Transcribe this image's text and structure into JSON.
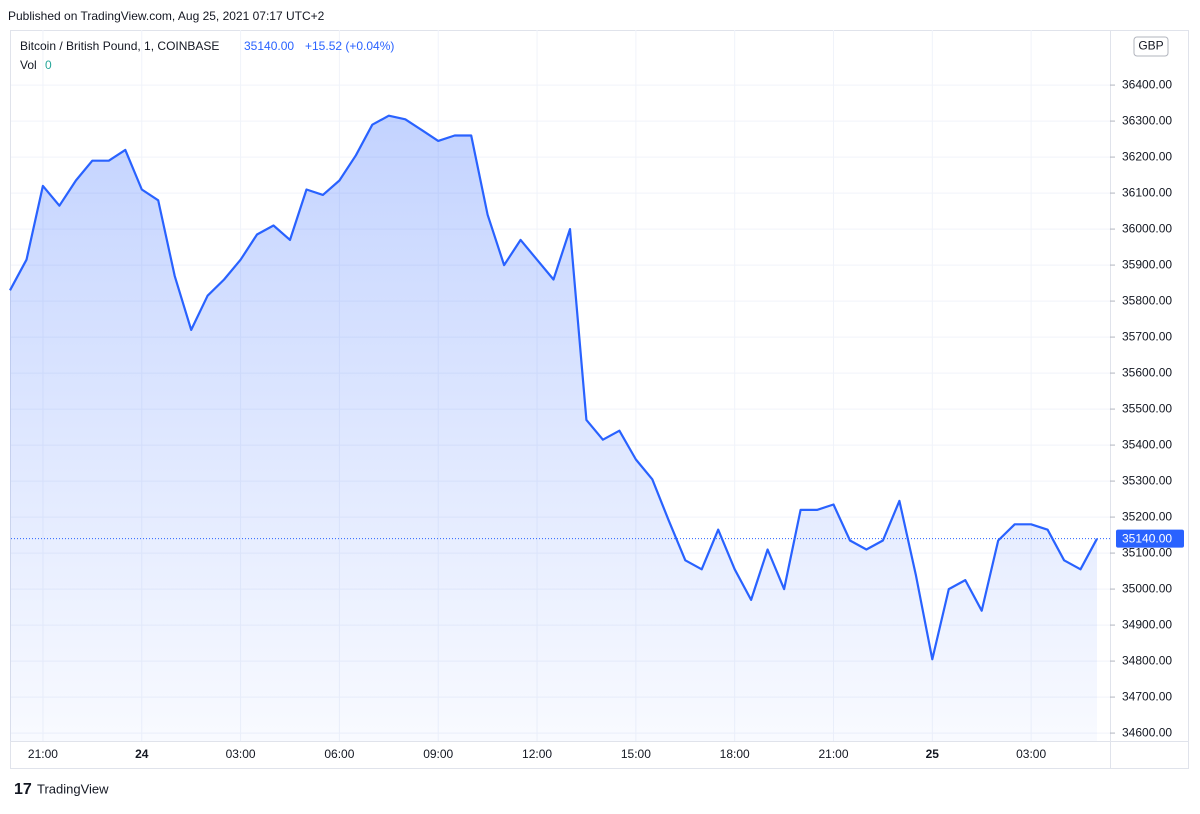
{
  "published": "Published on TradingView.com, Aug 25, 2021 07:17 UTC+2",
  "brand": "TradingView",
  "chart_data": {
    "type": "area",
    "title": "Bitcoin / British Pound, 1, COINBASE",
    "last_price": {
      "value": 35140,
      "label": "35140.00"
    },
    "change": "+15.52 (+0.04%)",
    "volume_label": "Vol",
    "volume_value": "0",
    "currency": "GBP",
    "categories": [
      null,
      null,
      "21:00",
      null,
      null,
      null,
      null,
      null,
      "24",
      null,
      null,
      null,
      null,
      null,
      "03:00",
      null,
      null,
      null,
      null,
      null,
      "06:00",
      null,
      null,
      null,
      null,
      null,
      "09:00",
      null,
      null,
      null,
      null,
      null,
      "12:00",
      null,
      null,
      null,
      null,
      null,
      "15:00",
      null,
      null,
      null,
      null,
      null,
      "18:00",
      null,
      null,
      null,
      null,
      null,
      "21:00",
      null,
      null,
      null,
      null,
      null,
      "25",
      null,
      null,
      null,
      null,
      null,
      "03:00",
      null,
      null,
      null,
      null
    ],
    "series": [
      {
        "name": "Bitcoin / British Pound",
        "color": "#2962ff",
        "values": [
          35830,
          35915,
          36120,
          36065,
          36135,
          36190,
          36190,
          36220,
          36110,
          36080,
          35870,
          35720,
          35815,
          35860,
          35915,
          35985,
          36010,
          35970,
          36110,
          36095,
          36135,
          36205,
          36290,
          36315,
          36305,
          36275,
          36245,
          36260,
          36260,
          36040,
          35900,
          35970,
          35915,
          35860,
          36000,
          35470,
          35415,
          35440,
          35360,
          35305,
          35190,
          35080,
          35055,
          35165,
          35055,
          34970,
          35110,
          35000,
          35220,
          35220,
          35235,
          35135,
          35110,
          35135,
          35245,
          35040,
          34805,
          35000,
          35025,
          34940,
          35135,
          35180,
          35180,
          35165,
          35080,
          35055,
          35140
        ]
      }
    ],
    "ylim": [
      34578,
      36553
    ],
    "yticks": [
      {
        "value": 34600,
        "label": "34600.00"
      },
      {
        "value": 34700,
        "label": "34700.00"
      },
      {
        "value": 34800,
        "label": "34800.00"
      },
      {
        "value": 34900,
        "label": "34900.00"
      },
      {
        "value": 35000,
        "label": "35000.00"
      },
      {
        "value": 35100,
        "label": "35100.00"
      },
      {
        "value": 35200,
        "label": "35200.00"
      },
      {
        "value": 35300,
        "label": "35300.00"
      },
      {
        "value": 35400,
        "label": "35400.00"
      },
      {
        "value": 35500,
        "label": "35500.00"
      },
      {
        "value": 35600,
        "label": "35600.00"
      },
      {
        "value": 35700,
        "label": "35700.00"
      },
      {
        "value": 35800,
        "label": "35800.00"
      },
      {
        "value": 35900,
        "label": "35900.00"
      },
      {
        "value": 36000,
        "label": "36000.00"
      },
      {
        "value": 36100,
        "label": "36100.00"
      },
      {
        "value": 36200,
        "label": "36200.00"
      },
      {
        "value": 36300,
        "label": "36300.00"
      },
      {
        "value": 36400,
        "label": "36400.00"
      }
    ],
    "grid": true
  }
}
